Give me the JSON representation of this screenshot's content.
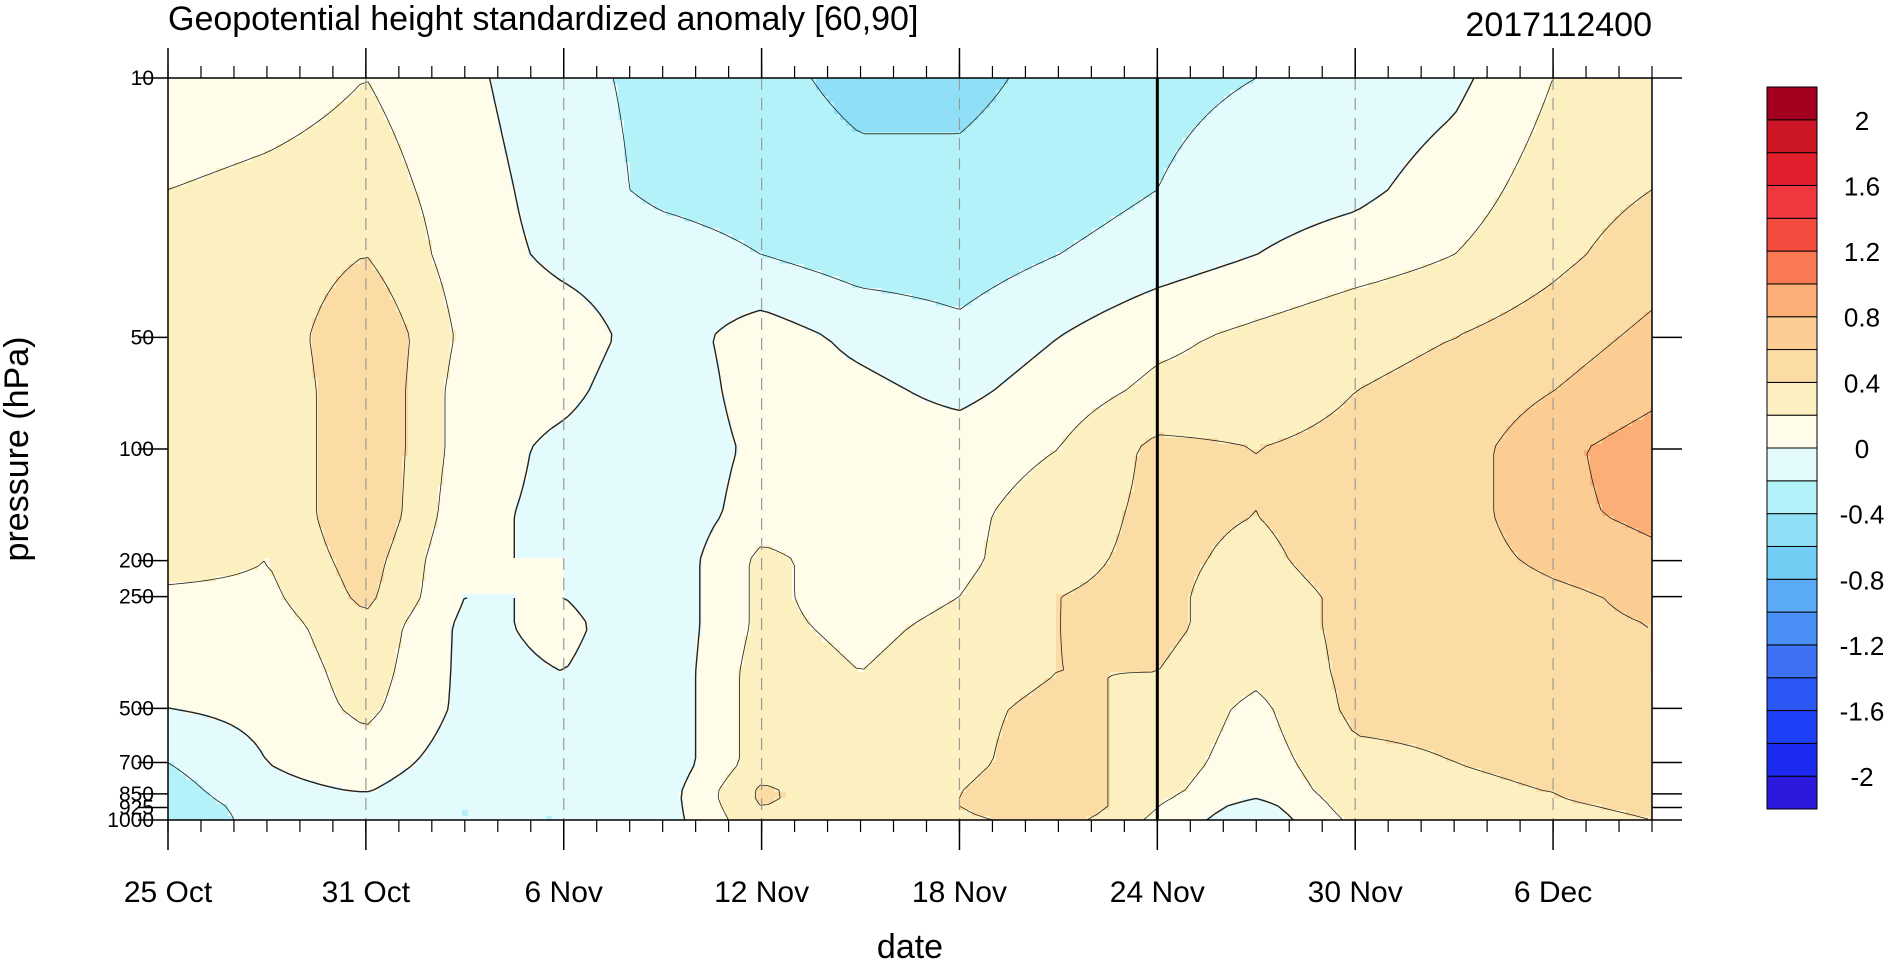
{
  "chart_data": {
    "type": "heatmap",
    "title": "Geopotential height standardized anomaly [60,90]",
    "date_stamp": "2017112400",
    "xlabel": "date",
    "ylabel": "pressure (hPa)",
    "x_range": [
      "2017-10-25",
      "2017-12-09"
    ],
    "x_ticks": [
      {
        "date": "2017-10-25",
        "label": "25 Oct"
      },
      {
        "date": "2017-10-31",
        "label": "31 Oct"
      },
      {
        "date": "2017-11-06",
        "label": "6 Nov"
      },
      {
        "date": "2017-11-12",
        "label": "12 Nov"
      },
      {
        "date": "2017-11-18",
        "label": "18 Nov"
      },
      {
        "date": "2017-11-24",
        "label": "24 Nov"
      },
      {
        "date": "2017-11-30",
        "label": "30 Nov"
      },
      {
        "date": "2017-12-06",
        "label": "6 Dec"
      }
    ],
    "y_scale": "log",
    "y_range": [
      1000,
      10
    ],
    "y_ticks": [
      {
        "value": 10,
        "label": "10"
      },
      {
        "value": 50,
        "label": "50"
      },
      {
        "value": 100,
        "label": "100"
      },
      {
        "value": 200,
        "label": "200"
      },
      {
        "value": 250,
        "label": "250"
      },
      {
        "value": 500,
        "label": "500"
      },
      {
        "value": 700,
        "label": "700"
      },
      {
        "value": 850,
        "label": "850"
      },
      {
        "value": 925,
        "label": "925"
      },
      {
        "value": 1000,
        "label": "1000"
      }
    ],
    "current_date_line": "2017-11-24",
    "grid": "dashed vertical lines at labeled dates",
    "colorbar": {
      "placement": "right",
      "levels": [
        -2.2,
        -2,
        -1.8,
        -1.6,
        -1.4,
        -1.2,
        -1,
        -0.8,
        -0.6,
        -0.4,
        -0.2,
        0,
        0.2,
        0.4,
        0.6,
        0.8,
        1,
        1.2,
        1.4,
        1.6,
        1.8,
        2,
        2.2
      ],
      "colors": [
        "#2b1adb",
        "#1d2bf0",
        "#1f3ff7",
        "#2c57f7",
        "#3d72f5",
        "#4a8ff5",
        "#5aaaf5",
        "#72cdf5",
        "#8fe0f7",
        "#b4f2fa",
        "#e3fbfd",
        "#fffcea",
        "#fdf0c0",
        "#fbdca4",
        "#fbcd93",
        "#fbae75",
        "#f97955",
        "#f24c3e",
        "#f03840",
        "#e21f2d",
        "#cc1525",
        "#a30020"
      ],
      "tick_labels": [
        {
          "value": 2,
          "label": "2"
        },
        {
          "value": 1.6,
          "label": "1.6"
        },
        {
          "value": 1.2,
          "label": "1.2"
        },
        {
          "value": 0.8,
          "label": "0.8"
        },
        {
          "value": 0.4,
          "label": "0.4"
        },
        {
          "value": 0,
          "label": "0"
        },
        {
          "value": -0.4,
          "label": "-0.4"
        },
        {
          "value": -0.8,
          "label": "-0.8"
        },
        {
          "value": -1.2,
          "label": "-1.2"
        },
        {
          "value": -1.6,
          "label": "-1.6"
        },
        {
          "value": -2,
          "label": "-2"
        }
      ]
    },
    "field": {
      "dates": [
        "2017-10-25",
        "2017-10-28",
        "2017-10-31",
        "2017-11-03",
        "2017-11-06",
        "2017-11-09",
        "2017-11-12",
        "2017-11-15",
        "2017-11-18",
        "2017-11-21",
        "2017-11-24",
        "2017-11-27",
        "2017-11-30",
        "2017-12-03",
        "2017-12-06",
        "2017-12-09"
      ],
      "pressures": [
        10,
        20,
        30,
        50,
        70,
        100,
        150,
        200,
        250,
        300,
        400,
        500,
        700,
        850,
        925,
        1000
      ],
      "values": [
        [
          0.05,
          0.1,
          0.2,
          0.05,
          -0.15,
          -0.25,
          -0.35,
          -0.45,
          -0.45,
          -0.35,
          -0.25,
          -0.2,
          -0.15,
          -0.05,
          0.2,
          0.3
        ],
        [
          0.2,
          0.25,
          0.3,
          0.1,
          -0.1,
          -0.25,
          -0.3,
          -0.35,
          -0.35,
          -0.3,
          -0.2,
          -0.1,
          -0.05,
          0.1,
          0.3,
          0.4
        ],
        [
          0.3,
          0.25,
          0.4,
          0.1,
          -0.05,
          -0.1,
          -0.2,
          -0.3,
          -0.3,
          -0.2,
          -0.1,
          0.0,
          0.1,
          0.2,
          0.35,
          0.5
        ],
        [
          0.3,
          0.25,
          0.6,
          0.15,
          0.1,
          -0.1,
          0.1,
          -0.05,
          -0.15,
          0.0,
          0.15,
          0.25,
          0.35,
          0.4,
          0.5,
          0.65
        ],
        [
          0.3,
          0.2,
          0.6,
          0.1,
          0.05,
          -0.15,
          0.1,
          0.05,
          -0.05,
          0.1,
          0.25,
          0.3,
          0.4,
          0.45,
          0.6,
          0.75
        ],
        [
          0.3,
          0.2,
          0.6,
          0.1,
          -0.05,
          -0.15,
          0.05,
          0.1,
          0.1,
          0.2,
          0.45,
          0.4,
          0.45,
          0.5,
          0.75,
          0.9
        ],
        [
          0.3,
          0.2,
          0.6,
          0.05,
          -0.05,
          -0.15,
          0.1,
          0.1,
          0.15,
          0.3,
          0.45,
          0.4,
          0.5,
          0.5,
          0.75,
          0.85
        ],
        [
          0.3,
          0.2,
          0.5,
          0.0,
          0.0,
          -0.15,
          0.25,
          0.1,
          0.15,
          0.35,
          0.45,
          0.35,
          0.5,
          0.5,
          0.65,
          0.75
        ],
        [
          0.15,
          0.15,
          0.45,
          0.0,
          0.0,
          -0.15,
          0.25,
          0.1,
          0.2,
          0.4,
          0.45,
          0.3,
          0.45,
          0.45,
          0.55,
          0.65
        ],
        [
          0.1,
          0.1,
          0.35,
          -0.05,
          0.05,
          -0.15,
          0.25,
          0.15,
          0.25,
          0.4,
          0.45,
          0.3,
          0.45,
          0.45,
          0.55,
          0.6
        ],
        [
          0.1,
          0.05,
          0.3,
          -0.05,
          0.0,
          -0.15,
          0.3,
          0.2,
          0.3,
          0.4,
          0.4,
          0.25,
          0.45,
          0.45,
          0.55,
          0.6
        ],
        [
          0.0,
          0.05,
          0.25,
          -0.05,
          -0.05,
          -0.15,
          0.3,
          0.25,
          0.35,
          0.45,
          0.35,
          0.15,
          0.45,
          0.45,
          0.5,
          0.55
        ],
        [
          -0.2,
          0.0,
          0.1,
          -0.1,
          -0.1,
          -0.15,
          0.3,
          0.25,
          0.35,
          0.5,
          0.3,
          0.1,
          0.35,
          0.4,
          0.45,
          0.6
        ],
        [
          -0.3,
          -0.05,
          0.0,
          -0.15,
          -0.15,
          -0.1,
          0.45,
          0.25,
          0.4,
          0.55,
          0.25,
          0.05,
          0.3,
          0.35,
          0.4,
          0.55
        ],
        [
          -0.35,
          -0.1,
          -0.1,
          -0.2,
          -0.2,
          -0.1,
          0.4,
          0.25,
          0.4,
          0.6,
          0.2,
          -0.1,
          0.3,
          0.3,
          0.35,
          0.45
        ],
        [
          -0.4,
          -0.1,
          -0.1,
          -0.2,
          -0.2,
          -0.1,
          0.35,
          0.2,
          0.35,
          0.5,
          0.15,
          -0.15,
          0.25,
          0.25,
          0.3,
          0.4
        ]
      ]
    }
  }
}
